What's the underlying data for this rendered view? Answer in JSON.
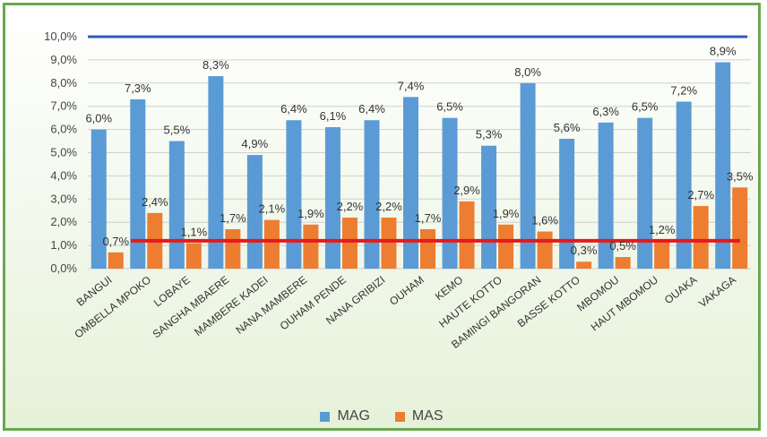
{
  "chart_data": {
    "type": "bar",
    "categories": [
      "BANGUI",
      "OMBELLA MPOKO",
      "LOBAYE",
      "SANGHA MBAERE",
      "MAMBERE KADEI",
      "NANA MAMBERE",
      "OUHAM PENDE",
      "NANA GRIBIZI",
      "OUHAM",
      "KEMO",
      "HAUTE KOTTO",
      "BAMINGI BANGORAN",
      "BASSE KOTTO",
      "MBOMOU",
      "HAUT MBOMOU",
      "OUAKA",
      "VAKAGA"
    ],
    "series": [
      {
        "name": "MAG",
        "color": "#5b9bd5",
        "values": [
          6.0,
          7.3,
          5.5,
          8.3,
          4.9,
          6.4,
          6.1,
          6.4,
          7.4,
          6.5,
          5.3,
          8.0,
          5.6,
          6.3,
          6.5,
          7.2,
          8.9
        ],
        "labels": [
          "6,0%",
          "7,3%",
          "5,5%",
          "8,3%",
          "4,9%",
          "6,4%",
          "6,1%",
          "6,4%",
          "7,4%",
          "6,5%",
          "5,3%",
          "8,0%",
          "5,6%",
          "6,3%",
          "6,5%",
          "7,2%",
          "8,9%"
        ]
      },
      {
        "name": "MAS",
        "color": "#ed7d31",
        "values": [
          0.7,
          2.4,
          1.1,
          1.7,
          2.1,
          1.9,
          2.2,
          2.2,
          1.7,
          2.9,
          1.9,
          1.6,
          0.3,
          0.5,
          1.2,
          2.7,
          3.5
        ],
        "labels": [
          "0,7%",
          "2,4%",
          "1,1%",
          "1,7%",
          "2,1%",
          "1,9%",
          "2,2%",
          "2,2%",
          "1,7%",
          "2,9%",
          "1,9%",
          "1,6%",
          "0,3%",
          "0,5%",
          "1,2%",
          "2,7%",
          "3,5%"
        ]
      }
    ],
    "reference_lines": [
      {
        "value": 10.0,
        "color": "#2e5bbd"
      },
      {
        "value": 1.2,
        "color": "#e41a1c"
      }
    ],
    "y_ticks": [
      "0,0%",
      "1,0%",
      "2,0%",
      "3,0%",
      "4,0%",
      "5,0%",
      "6,0%",
      "7,0%",
      "8,0%",
      "9,0%",
      "10,0%"
    ],
    "ylim": [
      0,
      10
    ],
    "grid": true,
    "legend": "bottom"
  }
}
